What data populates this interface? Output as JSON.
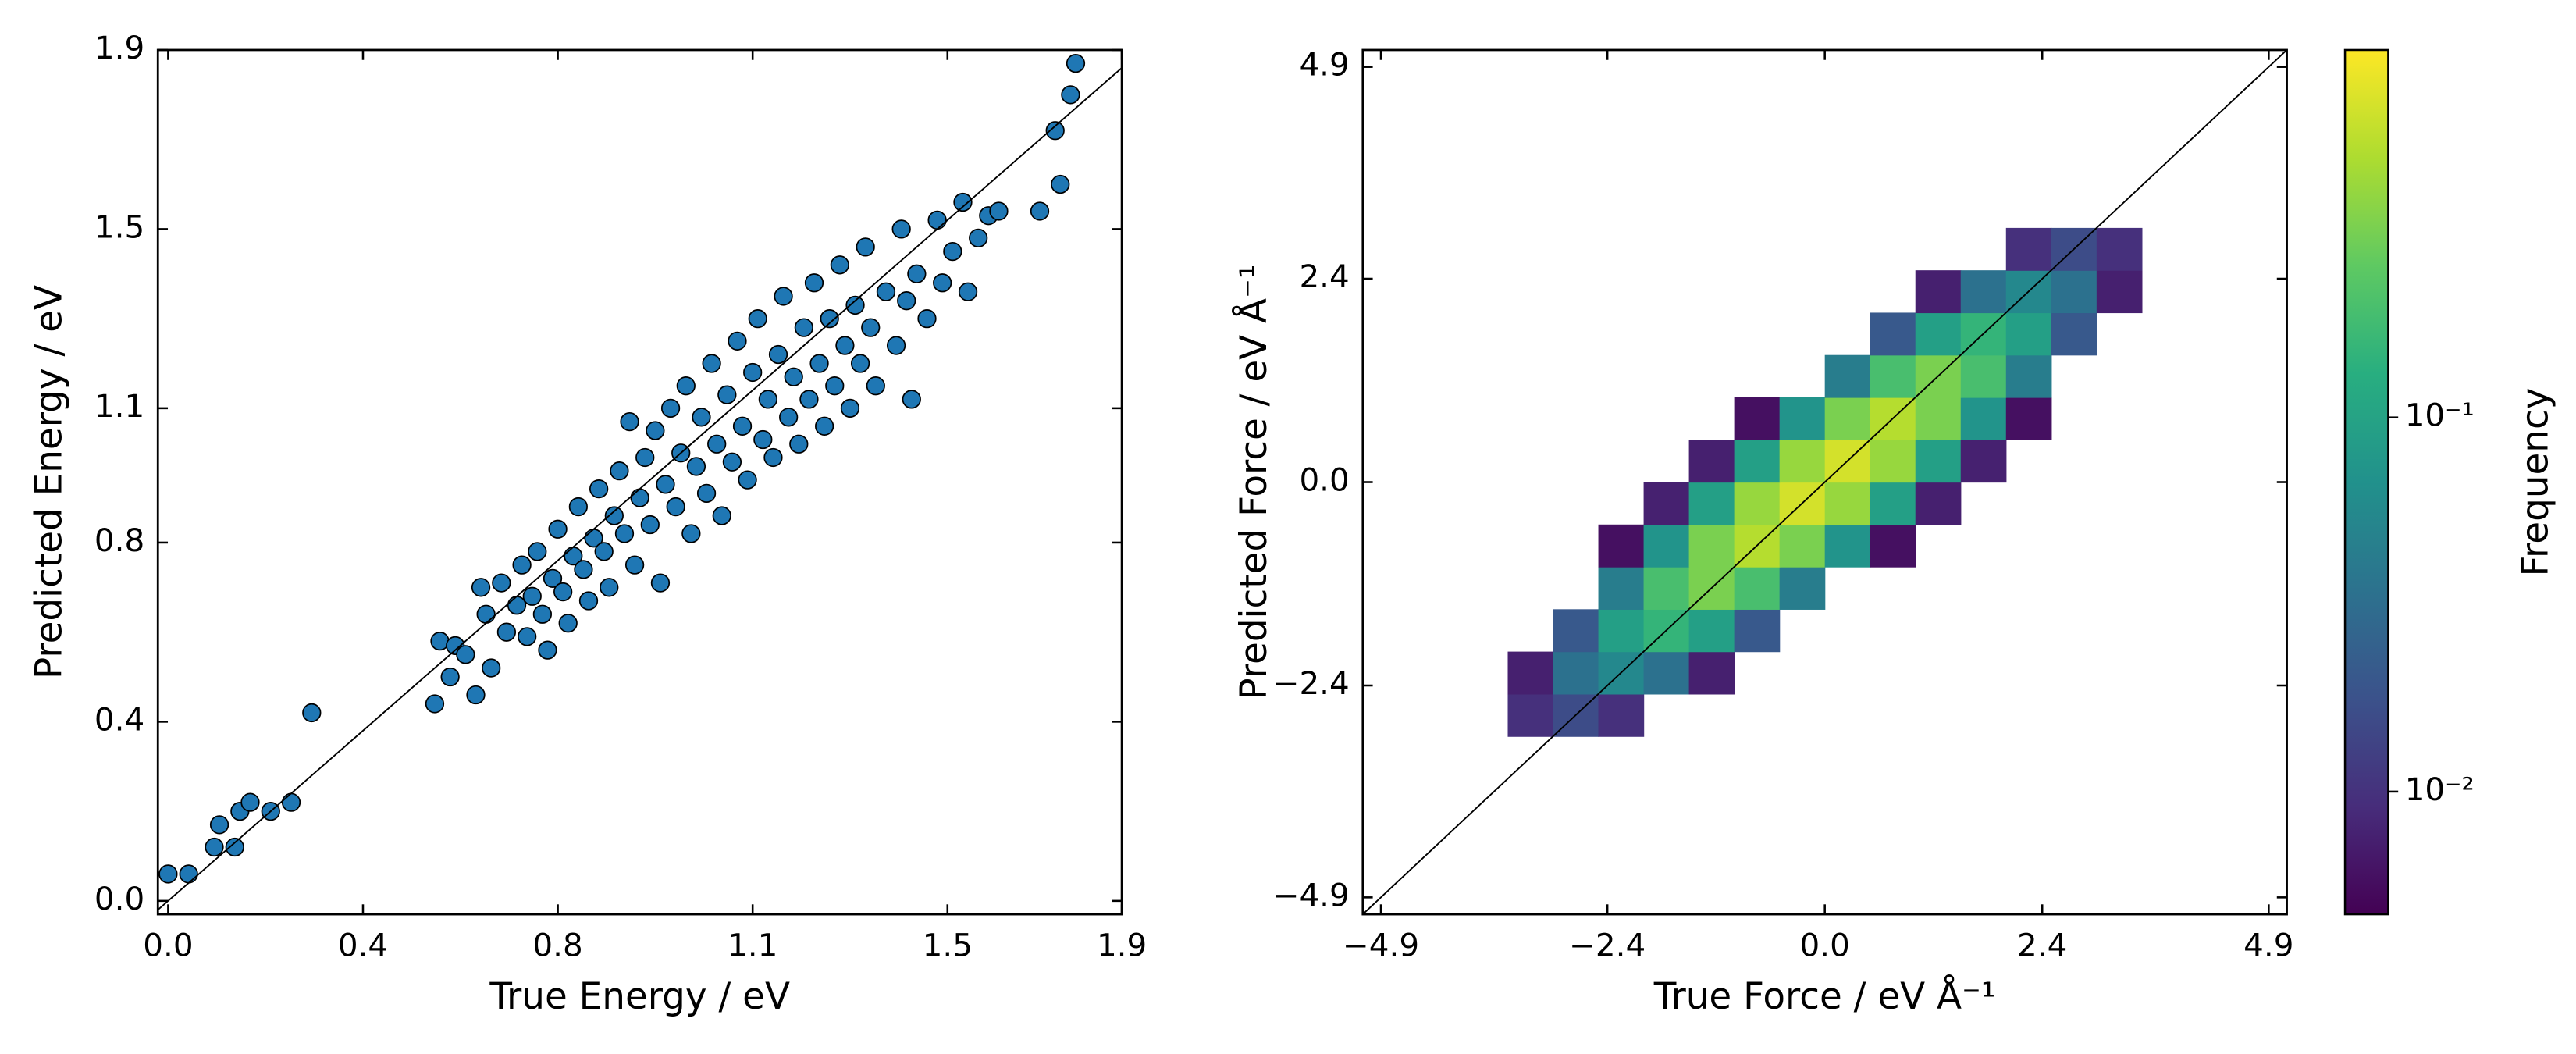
{
  "chart_data": [
    {
      "type": "scatter",
      "xlabel": "True Energy / eV",
      "ylabel": "Predicted Energy / eV",
      "color": "#1f77b4",
      "edgecolor": "#000000",
      "xlim": [
        -0.02,
        1.86
      ],
      "ylim": [
        -0.03,
        1.9
      ],
      "xticks": [
        {
          "value": 0,
          "label": "0.0"
        },
        {
          "value": 0.38,
          "label": "0.4"
        },
        {
          "value": 0.76,
          "label": "0.8"
        },
        {
          "value": 1.14,
          "label": "1.1"
        },
        {
          "value": 1.52,
          "label": "1.5"
        },
        {
          "value": 1.86,
          "label": "1.9"
        }
      ],
      "yticks": [
        {
          "value": 0,
          "label": "0.0"
        },
        0.4,
        0.8,
        1.1,
        1.5,
        1.9
      ],
      "x": [
        0.0,
        0.04,
        0.09,
        0.1,
        0.13,
        0.14,
        0.16,
        0.2,
        0.24,
        0.28,
        0.52,
        0.53,
        0.55,
        0.56,
        0.58,
        0.6,
        0.61,
        0.62,
        0.63,
        0.65,
        0.66,
        0.68,
        0.69,
        0.7,
        0.71,
        0.72,
        0.73,
        0.74,
        0.75,
        0.76,
        0.77,
        0.78,
        0.79,
        0.8,
        0.81,
        0.82,
        0.83,
        0.84,
        0.85,
        0.86,
        0.87,
        0.88,
        0.89,
        0.9,
        0.91,
        0.92,
        0.93,
        0.94,
        0.95,
        0.96,
        0.97,
        0.98,
        0.99,
        1.0,
        1.01,
        1.02,
        1.03,
        1.04,
        1.05,
        1.06,
        1.07,
        1.08,
        1.09,
        1.1,
        1.11,
        1.12,
        1.13,
        1.14,
        1.15,
        1.16,
        1.17,
        1.18,
        1.19,
        1.2,
        1.21,
        1.22,
        1.23,
        1.24,
        1.25,
        1.26,
        1.27,
        1.28,
        1.29,
        1.3,
        1.31,
        1.32,
        1.33,
        1.34,
        1.35,
        1.36,
        1.37,
        1.38,
        1.4,
        1.42,
        1.43,
        1.44,
        1.45,
        1.46,
        1.48,
        1.5,
        1.51,
        1.53,
        1.55,
        1.56,
        1.58,
        1.6,
        1.62,
        1.7,
        1.73,
        1.74,
        1.76,
        1.77
      ],
      "y": [
        0.06,
        0.06,
        0.12,
        0.17,
        0.12,
        0.2,
        0.22,
        0.2,
        0.22,
        0.42,
        0.44,
        0.58,
        0.5,
        0.57,
        0.55,
        0.46,
        0.7,
        0.64,
        0.52,
        0.71,
        0.6,
        0.66,
        0.75,
        0.59,
        0.68,
        0.78,
        0.64,
        0.56,
        0.72,
        0.83,
        0.69,
        0.62,
        0.77,
        0.88,
        0.74,
        0.67,
        0.81,
        0.92,
        0.78,
        0.7,
        0.86,
        0.96,
        0.82,
        1.07,
        0.75,
        0.9,
        0.99,
        0.84,
        1.05,
        0.71,
        0.93,
        1.1,
        0.88,
        1.0,
        1.15,
        0.82,
        0.97,
        1.08,
        0.91,
        1.2,
        1.02,
        0.86,
        1.13,
        0.98,
        1.25,
        1.06,
        0.94,
        1.18,
        1.3,
        1.03,
        1.12,
        0.99,
        1.22,
        1.35,
        1.08,
        1.17,
        1.02,
        1.28,
        1.12,
        1.38,
        1.2,
        1.06,
        1.3,
        1.15,
        1.42,
        1.24,
        1.1,
        1.33,
        1.2,
        1.46,
        1.28,
        1.15,
        1.36,
        1.24,
        1.5,
        1.34,
        1.12,
        1.4,
        1.3,
        1.52,
        1.38,
        1.45,
        1.56,
        1.36,
        1.48,
        1.53,
        1.54,
        1.54,
        1.72,
        1.6,
        1.8,
        1.87
      ]
    },
    {
      "type": "hist2d",
      "xlabel": "True Force / eV Å⁻¹",
      "ylabel": "Predicted Force / eV Å⁻¹",
      "xlim": [
        -5.1,
        5.1
      ],
      "ylim": [
        -5.1,
        5.1
      ],
      "xticks": [
        {
          "value": -4.9,
          "label": "−4.9"
        },
        {
          "value": -2.4,
          "label": "−2.4"
        },
        {
          "value": 0,
          "label": "0.0"
        },
        2.4,
        4.9
      ],
      "yticks": [
        {
          "value": -4.9,
          "label": "−4.9"
        },
        {
          "value": -2.4,
          "label": "−2.4"
        },
        {
          "value": 0,
          "label": "0.0"
        },
        2.4,
        4.9
      ],
      "colormap": "viridis",
      "color_scale": "log",
      "clim": [
        0.0047,
        0.96
      ],
      "clabel": "Frequency",
      "cticks": [
        {
          "value": 0.01,
          "label": "10⁻²"
        },
        {
          "value": 0.1,
          "label": "10⁻¹"
        }
      ],
      "xbins": [
        -5,
        -4.5,
        -4,
        -3.5,
        -3,
        -2.5,
        -2,
        -1.5,
        -1,
        -0.5,
        0,
        0.5,
        1,
        1.5,
        2,
        2.5,
        3,
        3.5,
        4,
        4.5,
        5
      ],
      "ybins": [
        -5,
        -4.5,
        -4,
        -3.5,
        -3,
        -2.5,
        -2,
        -1.5,
        -1,
        -0.5,
        0,
        0.5,
        1,
        1.5,
        2,
        2.5,
        3,
        3.5,
        4,
        4.5,
        5
      ],
      "counts": [
        [
          null,
          null,
          null,
          null,
          null,
          null,
          null,
          null,
          null,
          null,
          null,
          null,
          null,
          null,
          null,
          null,
          null,
          null,
          null,
          null
        ],
        [
          null,
          null,
          null,
          null,
          null,
          null,
          null,
          null,
          null,
          null,
          null,
          null,
          null,
          null,
          null,
          null,
          null,
          null,
          null,
          null
        ],
        [
          null,
          null,
          null,
          null,
          null,
          null,
          null,
          null,
          null,
          null,
          null,
          null,
          null,
          null,
          null,
          null,
          null,
          null,
          null,
          null
        ],
        [
          null,
          null,
          null,
          null,
          null,
          null,
          null,
          null,
          null,
          null,
          null,
          null,
          null,
          null,
          null,
          null,
          null,
          null,
          null,
          null
        ],
        [
          null,
          null,
          null,
          0.0097,
          0.016,
          0.0097,
          null,
          null,
          null,
          null,
          null,
          null,
          null,
          null,
          null,
          null,
          null,
          null,
          null,
          null
        ],
        [
          null,
          null,
          null,
          0.0075,
          0.034,
          0.0557,
          0.034,
          0.0075,
          null,
          null,
          null,
          null,
          null,
          null,
          null,
          null,
          null,
          null,
          null,
          null
        ],
        [
          null,
          null,
          null,
          null,
          0.0205,
          0.092,
          0.152,
          0.092,
          0.0205,
          null,
          null,
          null,
          null,
          null,
          null,
          null,
          null,
          null,
          null,
          null
        ],
        [
          null,
          null,
          null,
          null,
          null,
          0.0434,
          0.195,
          0.321,
          0.195,
          0.0434,
          null,
          null,
          null,
          null,
          null,
          null,
          null,
          null,
          null,
          null
        ],
        [
          null,
          null,
          null,
          null,
          null,
          0.0059,
          0.0717,
          0.321,
          0.528,
          0.321,
          0.0717,
          0.0059,
          null,
          null,
          null,
          null,
          null,
          null,
          null,
          null
        ],
        [
          null,
          null,
          null,
          null,
          null,
          null,
          0.0076,
          0.092,
          0.411,
          0.679,
          0.412,
          0.0917,
          0.0075,
          null,
          null,
          null,
          null,
          null,
          null,
          null
        ],
        [
          null,
          null,
          null,
          null,
          null,
          null,
          null,
          0.0075,
          0.0917,
          0.412,
          0.679,
          0.411,
          0.092,
          0.0076,
          null,
          null,
          null,
          null,
          null,
          null
        ],
        [
          null,
          null,
          null,
          null,
          null,
          null,
          null,
          null,
          0.0059,
          0.0717,
          0.321,
          0.528,
          0.321,
          0.0717,
          0.0059,
          null,
          null,
          null,
          null,
          null
        ],
        [
          null,
          null,
          null,
          null,
          null,
          null,
          null,
          null,
          null,
          null,
          0.0434,
          0.195,
          0.321,
          0.195,
          0.0434,
          null,
          null,
          null,
          null,
          null
        ],
        [
          null,
          null,
          null,
          null,
          null,
          null,
          null,
          null,
          null,
          null,
          null,
          0.0205,
          0.092,
          0.152,
          0.092,
          0.0205,
          null,
          null,
          null,
          null
        ],
        [
          null,
          null,
          null,
          null,
          null,
          null,
          null,
          null,
          null,
          null,
          null,
          null,
          0.0075,
          0.034,
          0.0557,
          0.034,
          0.0075,
          null,
          null,
          null
        ],
        [
          null,
          null,
          null,
          null,
          null,
          null,
          null,
          null,
          null,
          null,
          null,
          null,
          null,
          null,
          0.0097,
          0.016,
          0.0097,
          null,
          null,
          null
        ],
        [
          null,
          null,
          null,
          null,
          null,
          null,
          null,
          null,
          null,
          null,
          null,
          null,
          null,
          null,
          null,
          null,
          null,
          null,
          null,
          null
        ],
        [
          null,
          null,
          null,
          null,
          null,
          null,
          null,
          null,
          null,
          null,
          null,
          null,
          null,
          null,
          null,
          null,
          null,
          null,
          null,
          null
        ],
        [
          null,
          null,
          null,
          null,
          null,
          null,
          null,
          null,
          null,
          null,
          null,
          null,
          null,
          null,
          null,
          null,
          null,
          null,
          null,
          null
        ],
        [
          null,
          null,
          null,
          null,
          null,
          null,
          null,
          null,
          null,
          null,
          null,
          null,
          null,
          null,
          null,
          null,
          null,
          null,
          null,
          null
        ]
      ]
    }
  ]
}
